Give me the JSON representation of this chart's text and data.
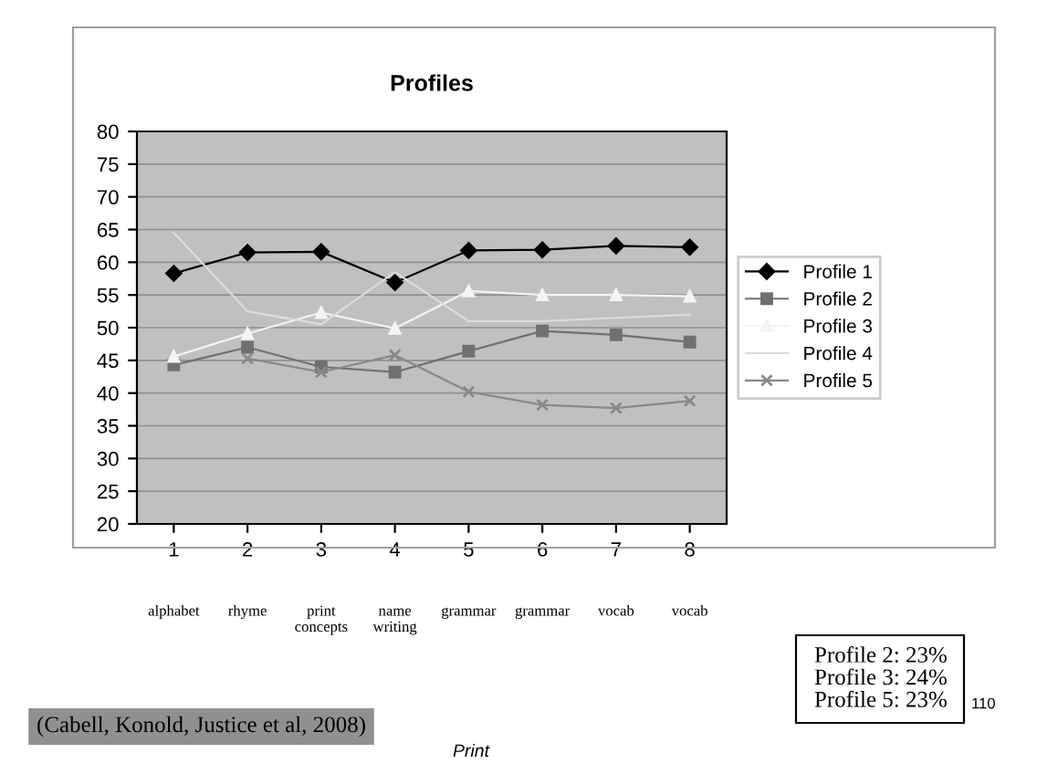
{
  "chart_data": {
    "type": "line",
    "title": "Profiles",
    "categories": [
      "1",
      "2",
      "3",
      "4",
      "5",
      "6",
      "7",
      "8"
    ],
    "series": [
      {
        "name": "Profile 1",
        "color": "#000000",
        "marker": "diamond",
        "values": [
          58.3,
          61.5,
          61.6,
          56.9,
          61.8,
          61.9,
          62.5,
          62.3
        ]
      },
      {
        "name": "Profile 2",
        "color": "#707070",
        "marker": "square",
        "values": [
          44.3,
          47.0,
          44.0,
          43.2,
          46.4,
          49.5,
          48.9,
          47.8
        ]
      },
      {
        "name": "Profile 3",
        "color": "#f4f4f4",
        "marker": "triangle",
        "values": [
          45.6,
          49.1,
          52.3,
          49.9,
          55.6,
          55.0,
          55.0,
          54.8
        ]
      },
      {
        "name": "Profile 4",
        "color": "#dcdcdc",
        "marker": "none",
        "values": [
          64.5,
          52.5,
          50.5,
          58.5,
          51.0,
          51.0,
          51.5,
          52.0
        ]
      },
      {
        "name": "Profile 5",
        "color": "#888888",
        "marker": "cross",
        "values": [
          null,
          45.3,
          43.2,
          45.8,
          40.2,
          38.2,
          37.7,
          38.8
        ]
      }
    ],
    "ylim": [
      20,
      80
    ],
    "yticks": [
      20,
      25,
      30,
      35,
      40,
      45,
      50,
      55,
      60,
      65,
      70,
      75,
      80
    ],
    "grid": "y",
    "legend": "right",
    "annotations": [
      "alphabet",
      "rhyme",
      "print\nconcepts",
      "name\nwriting",
      "grammar",
      "grammar",
      "vocab",
      "vocab",
      "Profile 2: 23%\nProfile 3: 24%\nProfile 5: 23%",
      "110",
      "(Cabell, Konold, Justice et al, 2008)",
      "Print"
    ]
  }
}
